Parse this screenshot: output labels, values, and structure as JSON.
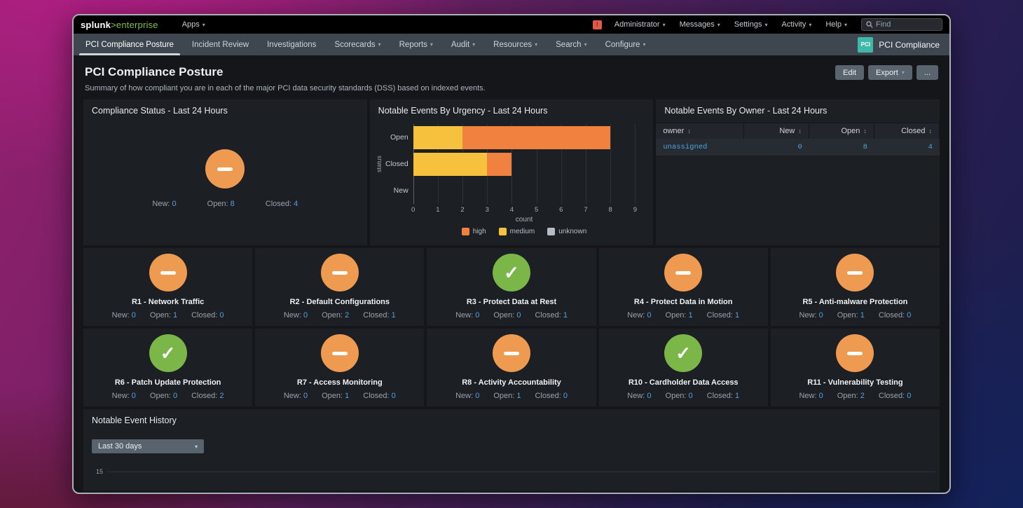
{
  "colors": {
    "kpi_warning_orange": "#ee9b51",
    "kpi_ok_green": "#7ab648",
    "bar_high": "#f1813f",
    "bar_medium": "#f6c13c",
    "bar_unknown": "#b6bcc3",
    "link_blue": "#4fa3dd",
    "app_badge_teal": "#3fb8aa",
    "health_red": "#e25a47"
  },
  "topbar": {
    "logo_splunk": "splunk",
    "logo_enterprise": ">enterprise",
    "apps_label": "Apps",
    "health_badge": "!",
    "menus": [
      "Administrator",
      "Messages",
      "Settings",
      "Activity",
      "Help"
    ],
    "find_placeholder": "Find"
  },
  "navbar": {
    "tabs": [
      {
        "label": "PCI Compliance Posture",
        "active": true,
        "caret": false
      },
      {
        "label": "Incident Review",
        "active": false,
        "caret": false
      },
      {
        "label": "Investigations",
        "active": false,
        "caret": false
      },
      {
        "label": "Scorecards",
        "active": false,
        "caret": true
      },
      {
        "label": "Reports",
        "active": false,
        "caret": true
      },
      {
        "label": "Audit",
        "active": false,
        "caret": true
      },
      {
        "label": "Resources",
        "active": false,
        "caret": true
      },
      {
        "label": "Search",
        "active": false,
        "caret": true
      },
      {
        "label": "Configure",
        "active": false,
        "caret": true
      }
    ],
    "app_badge": {
      "abbr": "PCI",
      "name": "PCI Compliance"
    }
  },
  "page": {
    "title": "PCI Compliance Posture",
    "subtitle": "Summary of how compliant you are in each of the major PCI data security standards (DSS) based on indexed events.",
    "actions": [
      "Edit",
      "Export",
      "..."
    ]
  },
  "panels": {
    "compliance_status": {
      "title": "Compliance Status - Last 24 Hours",
      "status": "warning",
      "counts": [
        {
          "label": "New:",
          "value": "0"
        },
        {
          "label": "Open:",
          "value": "8"
        },
        {
          "label": "Closed:",
          "value": "4"
        }
      ]
    },
    "owner_table": {
      "title": "Notable Events By Owner - Last 24 Hours",
      "columns": [
        "owner",
        "New",
        "Open",
        "Closed"
      ],
      "rows": [
        [
          "unassigned",
          "0",
          "8",
          "4"
        ]
      ]
    }
  },
  "chart_data": {
    "type": "bar",
    "orientation": "horizontal",
    "stacked": true,
    "title": "Notable Events By Urgency - Last 24 Hours",
    "categories": [
      "Open",
      "Closed",
      "New"
    ],
    "series": [
      {
        "name": "high",
        "color": "#f1813f",
        "values": [
          6,
          1,
          0
        ]
      },
      {
        "name": "medium",
        "color": "#f6c13c",
        "values": [
          2,
          3,
          0
        ]
      },
      {
        "name": "unknown",
        "color": "#b6bcc3",
        "values": [
          0,
          0,
          0
        ]
      }
    ],
    "stack_order": [
      "medium",
      "high",
      "unknown"
    ],
    "totals": {
      "Open": 8,
      "Closed": 4,
      "New": 0
    },
    "xlabel": "count",
    "ylabel": "status",
    "xlim": [
      0,
      9
    ],
    "x_ticks": [
      0,
      1,
      2,
      3,
      4,
      5,
      6,
      7,
      8,
      9
    ],
    "grid": "vertical",
    "legend_position": "bottom"
  },
  "requirements": [
    {
      "label": "R1 - Network Traffic",
      "status": "warning",
      "counts": [
        {
          "label": "New:",
          "value": "0"
        },
        {
          "label": "Open:",
          "value": "1"
        },
        {
          "label": "Closed:",
          "value": "0"
        }
      ]
    },
    {
      "label": "R2 - Default Configurations",
      "status": "warning",
      "counts": [
        {
          "label": "New:",
          "value": "0"
        },
        {
          "label": "Open:",
          "value": "2"
        },
        {
          "label": "Closed:",
          "value": "1"
        }
      ]
    },
    {
      "label": "R3 - Protect Data at Rest",
      "status": "ok",
      "counts": [
        {
          "label": "New:",
          "value": "0"
        },
        {
          "label": "Open:",
          "value": "0"
        },
        {
          "label": "Closed:",
          "value": "1"
        }
      ]
    },
    {
      "label": "R4 - Protect Data in Motion",
      "status": "warning",
      "counts": [
        {
          "label": "New:",
          "value": "0"
        },
        {
          "label": "Open:",
          "value": "1"
        },
        {
          "label": "Closed:",
          "value": "1"
        }
      ]
    },
    {
      "label": "R5 - Anti-malware Protection",
      "status": "warning",
      "counts": [
        {
          "label": "New:",
          "value": "0"
        },
        {
          "label": "Open:",
          "value": "1"
        },
        {
          "label": "Closed:",
          "value": "0"
        }
      ]
    },
    {
      "label": "R6 - Patch Update Protection",
      "status": "ok",
      "counts": [
        {
          "label": "New:",
          "value": "0"
        },
        {
          "label": "Open:",
          "value": "0"
        },
        {
          "label": "Closed:",
          "value": "2"
        }
      ]
    },
    {
      "label": "R7 - Access Monitoring",
      "status": "warning",
      "counts": [
        {
          "label": "New:",
          "value": "0"
        },
        {
          "label": "Open:",
          "value": "1"
        },
        {
          "label": "Closed:",
          "value": "0"
        }
      ]
    },
    {
      "label": "R8 - Activity Accountability",
      "status": "warning",
      "counts": [
        {
          "label": "New:",
          "value": "0"
        },
        {
          "label": "Open:",
          "value": "1"
        },
        {
          "label": "Closed:",
          "value": "0"
        }
      ]
    },
    {
      "label": "R10 - Cardholder Data Access",
      "status": "ok",
      "counts": [
        {
          "label": "New:",
          "value": "0"
        },
        {
          "label": "Open:",
          "value": "0"
        },
        {
          "label": "Closed:",
          "value": "1"
        }
      ]
    },
    {
      "label": "R11 - Vulnerability Testing",
      "status": "warning",
      "counts": [
        {
          "label": "New:",
          "value": "0"
        },
        {
          "label": "Open:",
          "value": "2"
        },
        {
          "label": "Closed:",
          "value": "0"
        }
      ]
    }
  ],
  "history": {
    "title": "Notable Event History",
    "range_label": "Last 30 days",
    "tick_label": "15"
  }
}
